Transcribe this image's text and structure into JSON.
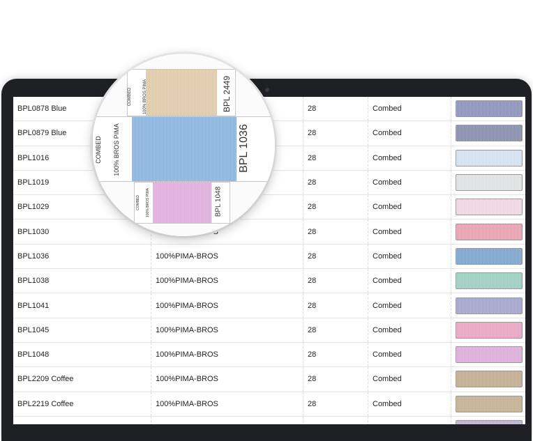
{
  "table": {
    "rows": [
      {
        "code": "BPL0878 Blue",
        "material": "",
        "count": "28",
        "type": "Combed",
        "color": "#8f96c4"
      },
      {
        "code": "BPL0879 Blue",
        "material": "",
        "count": "28",
        "type": "Combed",
        "color": "#8a90b3"
      },
      {
        "code": "BPL1016",
        "material": "",
        "count": "28",
        "type": "Combed",
        "color": "#d7e9f8"
      },
      {
        "code": "BPL1019",
        "material": "",
        "count": "28",
        "type": "Combed",
        "color": "#e6e8ea"
      },
      {
        "code": "BPL1029",
        "material": "",
        "count": "28",
        "type": "Combed",
        "color": "#f9dde8"
      },
      {
        "code": "BPL1030",
        "material": "100%PIMA-BROS",
        "count": "28",
        "type": "Combed",
        "color": "#f5a3b6"
      },
      {
        "code": "BPL1036",
        "material": "100%PIMA-BROS",
        "count": "28",
        "type": "Combed",
        "color": "#7fa9d9"
      },
      {
        "code": "BPL1038",
        "material": "100%PIMA-BROS",
        "count": "28",
        "type": "Combed",
        "color": "#9ed6c6"
      },
      {
        "code": "BPL1041",
        "material": "100%PIMA-BROS",
        "count": "28",
        "type": "Combed",
        "color": "#a7aad4"
      },
      {
        "code": "BPL1045",
        "material": "100%PIMA-BROS",
        "count": "28",
        "type": "Combed",
        "color": "#f3a6ca"
      },
      {
        "code": "BPL1048",
        "material": "100%PIMA-BROS",
        "count": "28",
        "type": "Combed",
        "color": "#e4b1e2"
      },
      {
        "code": "BPL2209 Coffee",
        "material": "100%PIMA-BROS",
        "count": "28",
        "type": "Combed",
        "color": "#c9b191"
      },
      {
        "code": "BPL2219 Coffee",
        "material": "100%PIMA-BROS",
        "count": "28",
        "type": "Combed",
        "color": "#cbb595"
      },
      {
        "code": "",
        "material": "",
        "count": "",
        "type": "",
        "color": "#c4b9d2"
      }
    ]
  },
  "magnifier": {
    "top_card": {
      "label_left_1": "COMBED",
      "label_left_2": "100% BROS PIMA",
      "label_right": "BPL 2449",
      "color": "#e3cfb0"
    },
    "main_card": {
      "label_left_1": "COMBED",
      "label_left_2": "100% BROS PIMA",
      "label_right": "BPL 1036",
      "color": "#8fb7e2"
    },
    "bottom_card": {
      "label_left_1": "COMBED",
      "label_left_2": "100% BROS PIMA",
      "label_right": "BPL 1048",
      "color": "#e3b3e0"
    }
  }
}
